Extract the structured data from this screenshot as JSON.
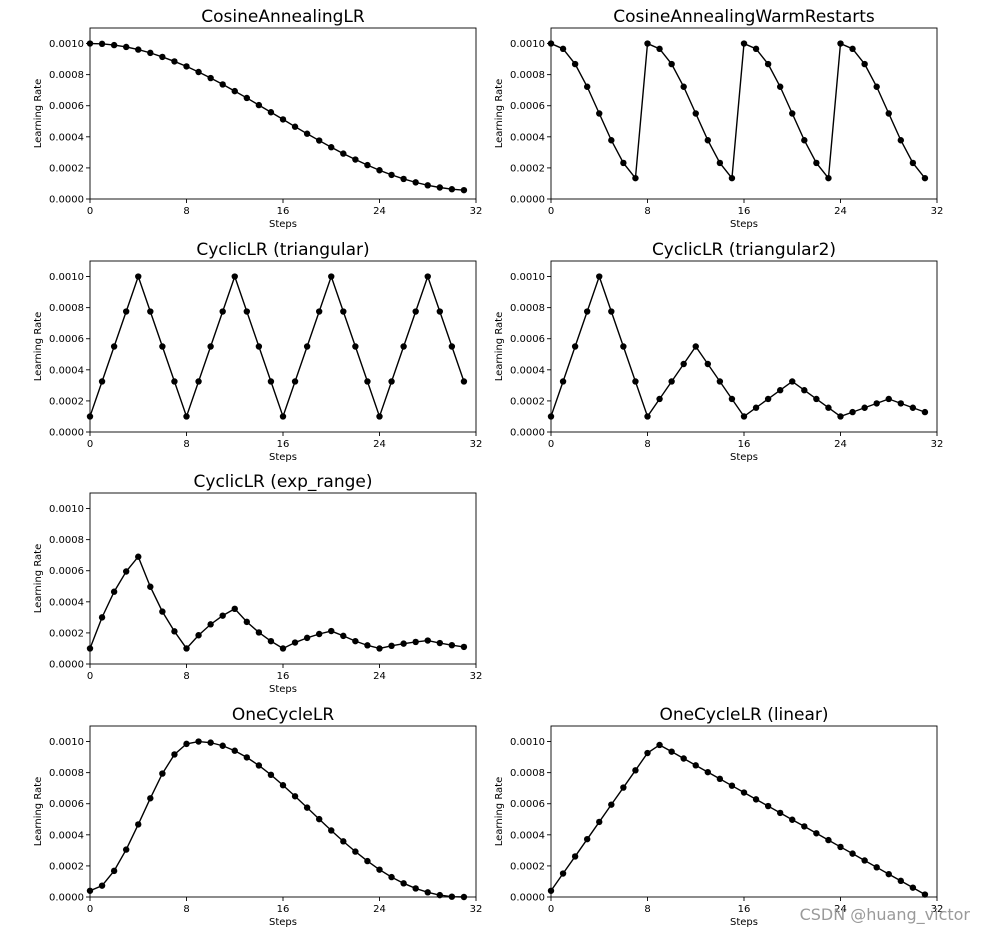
{
  "watermark": "CSDN @huang_victor",
  "chart_data": [
    {
      "type": "line",
      "title": "CosineAnnealingLR",
      "xlabel": "Steps",
      "ylabel": "Learning Rate",
      "xlim": [
        0,
        32
      ],
      "ylim": [
        0,
        0.0011
      ],
      "xticks": [
        0,
        8,
        16,
        24,
        32
      ],
      "yticks": [
        0.0,
        0.0002,
        0.0004,
        0.0006,
        0.0008,
        0.001
      ],
      "ytick_labels": [
        "0.0000",
        "0.0002",
        "0.0004",
        "0.0006",
        "0.0008",
        "0.0010"
      ],
      "series": [
        {
          "name": "CosineAnnealingLR",
          "x": [
            0,
            1,
            2,
            3,
            4,
            5,
            6,
            7,
            8,
            9,
            10,
            11,
            12,
            13,
            14,
            15,
            16,
            17,
            18,
            19,
            20,
            21,
            22,
            23,
            24,
            25,
            26,
            27,
            28,
            29,
            30,
            31
          ],
          "values": [
            0.001,
            0.000998,
            0.00099,
            0.000978,
            0.000961,
            0.00094,
            0.000914,
            0.000885,
            0.000853,
            0.000817,
            0.000778,
            0.000737,
            0.000694,
            0.00065,
            0.000604,
            0.000558,
            0.000512,
            0.000465,
            0.00042,
            0.000376,
            0.000333,
            0.000292,
            0.000254,
            0.000218,
            0.000185,
            0.000155,
            0.000129,
            0.000107,
            8.8e-05,
            7.4e-05,
            6.3e-05,
            5.7e-05
          ]
        }
      ]
    },
    {
      "type": "line",
      "title": "CosineAnnealingWarmRestarts",
      "xlabel": "Steps",
      "ylabel": "Learning Rate",
      "xlim": [
        0,
        32
      ],
      "ylim": [
        0,
        0.0011
      ],
      "xticks": [
        0,
        8,
        16,
        24,
        32
      ],
      "yticks": [
        0.0,
        0.0002,
        0.0004,
        0.0006,
        0.0008,
        0.001
      ],
      "ytick_labels": [
        "0.0000",
        "0.0002",
        "0.0004",
        "0.0006",
        "0.0008",
        "0.0010"
      ],
      "series": [
        {
          "name": "CosineAnnealingWarmRestarts",
          "x": [
            0,
            1,
            2,
            3,
            4,
            5,
            6,
            7,
            8,
            9,
            10,
            11,
            12,
            13,
            14,
            15,
            16,
            17,
            18,
            19,
            20,
            21,
            22,
            23,
            24,
            25,
            26,
            27,
            28,
            29,
            30,
            31
          ],
          "values": [
            0.001,
            0.000966,
            0.000868,
            0.000722,
            0.00055,
            0.000378,
            0.000232,
            0.000134,
            0.001,
            0.000966,
            0.000868,
            0.000722,
            0.00055,
            0.000378,
            0.000232,
            0.000134,
            0.001,
            0.000966,
            0.000868,
            0.000722,
            0.00055,
            0.000378,
            0.000232,
            0.000134,
            0.001,
            0.000966,
            0.000868,
            0.000722,
            0.00055,
            0.000378,
            0.000232,
            0.000134
          ]
        }
      ]
    },
    {
      "type": "line",
      "title": "CyclicLR (triangular)",
      "xlabel": "Steps",
      "ylabel": "Learning Rate",
      "xlim": [
        0,
        32
      ],
      "ylim": [
        0,
        0.0011
      ],
      "xticks": [
        0,
        8,
        16,
        24,
        32
      ],
      "yticks": [
        0.0,
        0.0002,
        0.0004,
        0.0006,
        0.0008,
        0.001
      ],
      "ytick_labels": [
        "0.0000",
        "0.0002",
        "0.0004",
        "0.0006",
        "0.0008",
        "0.0010"
      ],
      "series": [
        {
          "name": "CyclicLR (triangular)",
          "x": [
            0,
            1,
            2,
            3,
            4,
            5,
            6,
            7,
            8,
            9,
            10,
            11,
            12,
            13,
            14,
            15,
            16,
            17,
            18,
            19,
            20,
            21,
            22,
            23,
            24,
            25,
            26,
            27,
            28,
            29,
            30,
            31
          ],
          "values": [
            0.0001,
            0.000325,
            0.00055,
            0.000775,
            0.001,
            0.000775,
            0.00055,
            0.000325,
            0.0001,
            0.000325,
            0.00055,
            0.000775,
            0.001,
            0.000775,
            0.00055,
            0.000325,
            0.0001,
            0.000325,
            0.00055,
            0.000775,
            0.001,
            0.000775,
            0.00055,
            0.000325,
            0.0001,
            0.000325,
            0.00055,
            0.000775,
            0.001,
            0.000775,
            0.00055,
            0.000325
          ]
        }
      ]
    },
    {
      "type": "line",
      "title": "CyclicLR (triangular2)",
      "xlabel": "Steps",
      "ylabel": "Learning Rate",
      "xlim": [
        0,
        32
      ],
      "ylim": [
        0,
        0.0011
      ],
      "xticks": [
        0,
        8,
        16,
        24,
        32
      ],
      "yticks": [
        0.0,
        0.0002,
        0.0004,
        0.0006,
        0.0008,
        0.001
      ],
      "ytick_labels": [
        "0.0000",
        "0.0002",
        "0.0004",
        "0.0006",
        "0.0008",
        "0.0010"
      ],
      "series": [
        {
          "name": "CyclicLR (triangular2)",
          "x": [
            0,
            1,
            2,
            3,
            4,
            5,
            6,
            7,
            8,
            9,
            10,
            11,
            12,
            13,
            14,
            15,
            16,
            17,
            18,
            19,
            20,
            21,
            22,
            23,
            24,
            25,
            26,
            27,
            28,
            29,
            30,
            31
          ],
          "values": [
            0.0001,
            0.000325,
            0.00055,
            0.000775,
            0.001,
            0.000775,
            0.00055,
            0.000325,
            0.0001,
            0.0002125,
            0.000325,
            0.0004375,
            0.00055,
            0.0004375,
            0.000325,
            0.0002125,
            0.0001,
            0.00015625,
            0.0002125,
            0.00026875,
            0.000325,
            0.00026875,
            0.0002125,
            0.00015625,
            0.0001,
            0.000128,
            0.000156,
            0.000184,
            0.0002125,
            0.000184,
            0.000156,
            0.000128
          ]
        }
      ]
    },
    {
      "type": "line",
      "title": "CyclicLR (exp_range)",
      "xlabel": "Steps",
      "ylabel": "Learning Rate",
      "xlim": [
        0,
        32
      ],
      "ylim": [
        0,
        0.0011
      ],
      "xticks": [
        0,
        8,
        16,
        24,
        32
      ],
      "yticks": [
        0.0,
        0.0002,
        0.0004,
        0.0006,
        0.0008,
        0.001
      ],
      "ytick_labels": [
        "0.0000",
        "0.0002",
        "0.0004",
        "0.0006",
        "0.0008",
        "0.0010"
      ],
      "series": [
        {
          "name": "CyclicLR (exp_range)",
          "x": [
            0,
            1,
            2,
            3,
            4,
            5,
            6,
            7,
            8,
            9,
            10,
            11,
            12,
            13,
            14,
            15,
            16,
            17,
            18,
            19,
            20,
            21,
            22,
            23,
            24,
            25,
            26,
            27,
            28,
            29,
            30,
            31
          ],
          "values": [
            0.0001,
            0.0003,
            0.000465,
            0.000595,
            0.00069,
            0.000497,
            0.000337,
            0.00021,
            0.0001,
            0.000185,
            0.000255,
            0.000311,
            0.000355,
            0.000271,
            0.000203,
            0.000147,
            0.0001,
            0.000138,
            0.000168,
            0.000193,
            0.000212,
            0.000181,
            0.000147,
            0.00012,
            0.0001,
            0.000117,
            0.000131,
            0.000142,
            0.000151,
            0.000135,
            0.000121,
            0.00011
          ]
        }
      ]
    },
    {
      "type": "line",
      "title": "OneCycleLR",
      "xlabel": "Steps",
      "ylabel": "Learning Rate",
      "xlim": [
        0,
        32
      ],
      "ylim": [
        0,
        0.0011
      ],
      "xticks": [
        0,
        8,
        16,
        24,
        32
      ],
      "yticks": [
        0.0,
        0.0002,
        0.0004,
        0.0006,
        0.0008,
        0.001
      ],
      "ytick_labels": [
        "0.0000",
        "0.0002",
        "0.0004",
        "0.0006",
        "0.0008",
        "0.0010"
      ],
      "series": [
        {
          "name": "OneCycleLR",
          "x": [
            0,
            1,
            2,
            3,
            4,
            5,
            6,
            7,
            8,
            9,
            10,
            11,
            12,
            13,
            14,
            15,
            16,
            17,
            18,
            19,
            20,
            21,
            22,
            23,
            24,
            25,
            26,
            27,
            28,
            29,
            30,
            31
          ],
          "values": [
            4e-05,
            7.3e-05,
            0.000168,
            0.000305,
            0.000467,
            0.000635,
            0.000794,
            0.000917,
            0.000985,
            0.001,
            0.000993,
            0.000973,
            0.000941,
            0.000898,
            0.000846,
            0.000786,
            0.000719,
            0.000648,
            0.000575,
            0.000501,
            0.000428,
            0.000358,
            0.000292,
            0.000231,
            0.000176,
            0.000128,
            8.8e-05,
            5.5e-05,
            3e-05,
            1.2e-05,
            2e-06,
            0.0
          ]
        }
      ]
    },
    {
      "type": "line",
      "title": "OneCycleLR (linear)",
      "xlabel": "Steps",
      "ylabel": "Learning Rate",
      "xlim": [
        0,
        32
      ],
      "ylim": [
        0,
        0.0011
      ],
      "xticks": [
        0,
        8,
        16,
        24,
        32
      ],
      "yticks": [
        0.0,
        0.0002,
        0.0004,
        0.0006,
        0.0008,
        0.001
      ],
      "ytick_labels": [
        "0.0000",
        "0.0002",
        "0.0004",
        "0.0006",
        "0.0008",
        "0.0010"
      ],
      "series": [
        {
          "name": "OneCycleLR (linear)",
          "x": [
            0,
            1,
            2,
            3,
            4,
            5,
            6,
            7,
            8,
            9,
            10,
            11,
            12,
            13,
            14,
            15,
            16,
            17,
            18,
            19,
            20,
            21,
            22,
            23,
            24,
            25,
            26,
            27,
            28,
            29,
            30,
            31
          ],
          "values": [
            4e-05,
            0.000151,
            0.000261,
            0.000372,
            0.000483,
            0.000594,
            0.000704,
            0.000815,
            0.000926,
            0.000978,
            0.000935,
            0.000891,
            0.000847,
            0.000803,
            0.00076,
            0.000716,
            0.000672,
            0.000628,
            0.000585,
            0.000541,
            0.000497,
            0.000454,
            0.00041,
            0.000366,
            0.000322,
            0.000279,
            0.000235,
            0.000191,
            0.000147,
            0.000104,
            6e-05,
            1.6e-05
          ]
        }
      ]
    }
  ]
}
